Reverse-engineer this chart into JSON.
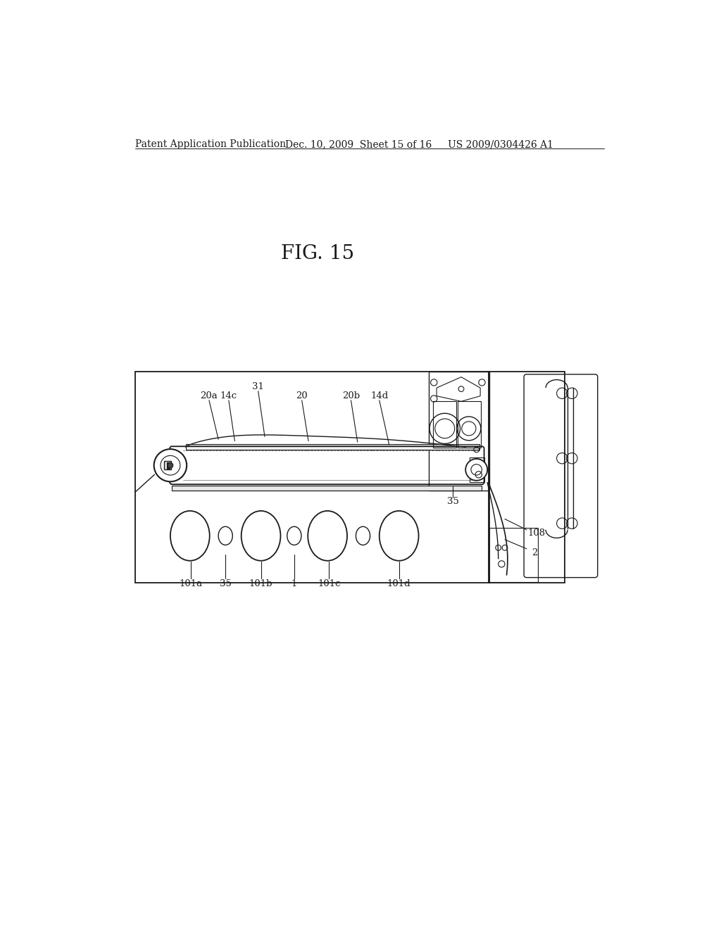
{
  "bg": "#ffffff",
  "lc": "#1a1a1a",
  "header_left": "Patent Application Publication",
  "header_mid": "Dec. 10, 2009  Sheet 15 of 16",
  "header_right": "US 2009/0304426 A1",
  "fig_title": "FIG. 15"
}
